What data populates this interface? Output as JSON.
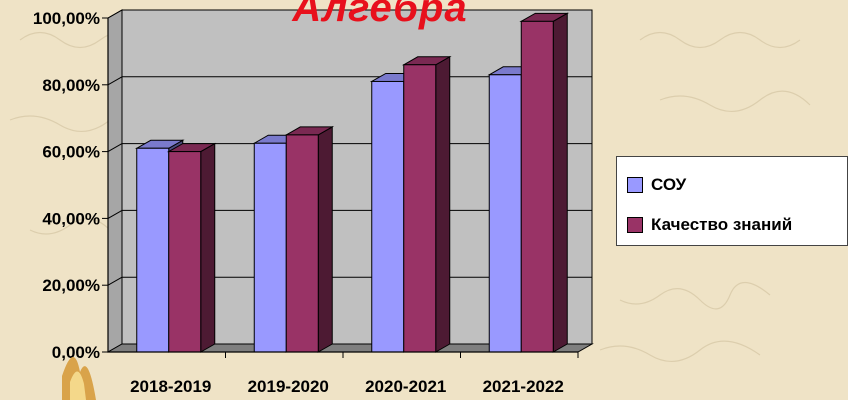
{
  "chart_data": {
    "type": "bar",
    "title": "Алгебра",
    "categories": [
      "2018-2019",
      "2019-2020",
      "2020-2021",
      "2021-2022"
    ],
    "series": [
      {
        "name": "СОУ",
        "values": [
          61,
          62.5,
          81,
          83
        ],
        "color": "#9999ff"
      },
      {
        "name": "Качество знаний",
        "values": [
          60,
          65,
          86,
          99
        ],
        "color": "#993366"
      }
    ],
    "yticks": [
      "0,00%",
      "20,00%",
      "40,00%",
      "60,00%",
      "80,00%",
      "100,00%"
    ],
    "ylim": [
      0,
      100
    ],
    "grid": true,
    "legend_position": "right"
  },
  "colors": {
    "plot_wall": "#c0c0c0",
    "floor": "#7f7f7f",
    "title": "#e8101c"
  }
}
